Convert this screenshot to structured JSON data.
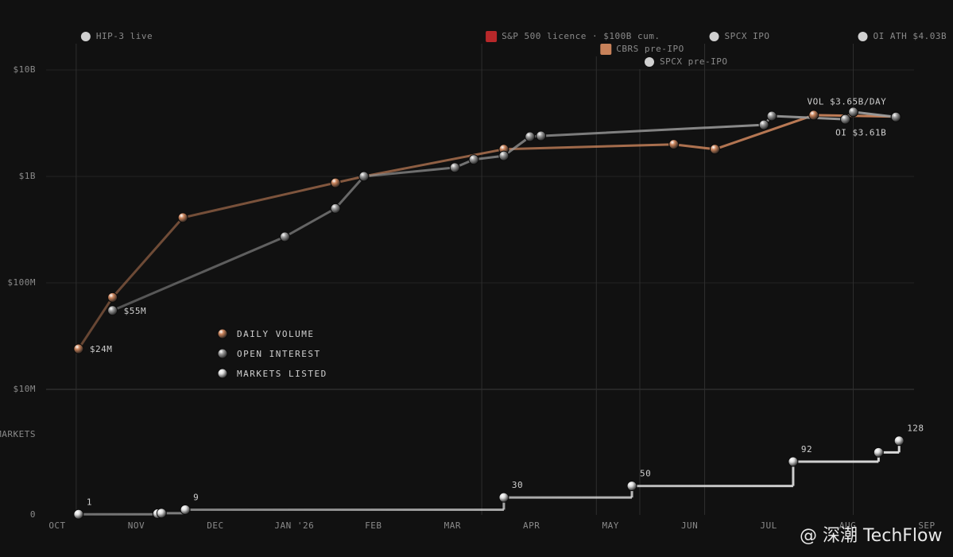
{
  "chart_data": [
    {
      "type": "line",
      "log_y": true,
      "grid": true,
      "ylim": [
        10000000,
        10000000000
      ],
      "yticks": [
        {
          "value": 10000000,
          "label": "$10M"
        },
        {
          "value": 100000000,
          "label": "$100M"
        },
        {
          "value": 1000000000,
          "label": "$1B"
        },
        {
          "value": 10000000000,
          "label": "$10B"
        }
      ],
      "xlim": [
        0,
        11
      ],
      "series": [
        {
          "name": "DAILY VOLUME",
          "color": "#c8825a",
          "x": [
            0.27,
            0.7,
            1.59,
            3.52,
            3.88,
            5.65,
            7.8,
            8.32,
            9.57,
            10.61
          ],
          "values": [
            24000000,
            73000000,
            410000000,
            870000000,
            1000000000,
            1800000000,
            2000000000,
            1800000000,
            3760000000,
            3650000000
          ],
          "value_labels": [
            "$24M",
            null,
            null,
            null,
            null,
            null,
            null,
            null,
            null,
            "VOL $3.65B/DAY"
          ]
        },
        {
          "name": "OPEN INTEREST",
          "color": "#9a9a9a",
          "x": [
            0.7,
            2.88,
            3.52,
            3.88,
            5.03,
            5.27,
            5.65,
            5.98,
            6.12,
            8.94,
            9.04,
            9.97,
            10.07,
            10.61
          ],
          "values": [
            55000000,
            271000000,
            500000000,
            1000000000,
            1210000000,
            1440000000,
            1560000000,
            2360000000,
            2400000000,
            3050000000,
            3690000000,
            3440000000,
            4030000000,
            3610000000
          ],
          "value_labels": [
            "$55M",
            null,
            null,
            null,
            null,
            null,
            null,
            null,
            null,
            null,
            null,
            null,
            null,
            "OI $3.61B"
          ]
        }
      ],
      "events": [
        {
          "x": 0.24,
          "label": "HIP-3 live"
        },
        {
          "x": 5.37,
          "label": "S&P 500 licence · $100B cum."
        },
        {
          "x": 6.82,
          "label": "CBRS pre-IPO"
        },
        {
          "x": 7.37,
          "label": "SPCX pre-IPO"
        },
        {
          "x": 8.19,
          "label": "SPCX IPO"
        },
        {
          "x": 10.07,
          "label": "OI ATH $4.03B"
        }
      ]
    },
    {
      "type": "step",
      "y_label": "MARKETS",
      "ylim": [
        0,
        140
      ],
      "yticks": [
        0
      ],
      "xlim": [
        0,
        11
      ],
      "xticks": [
        {
          "value": 0,
          "label": "OCT"
        },
        {
          "value": 1,
          "label": "NOV"
        },
        {
          "value": 2,
          "label": "DEC"
        },
        {
          "value": 3,
          "label": "JAN '26"
        },
        {
          "value": 4,
          "label": "FEB"
        },
        {
          "value": 5,
          "label": "MAR"
        },
        {
          "value": 6,
          "label": "APR"
        },
        {
          "value": 7,
          "label": "MAY"
        },
        {
          "value": 8,
          "label": "JUN"
        },
        {
          "value": 9,
          "label": "JUL"
        },
        {
          "value": 10,
          "label": "AUG"
        },
        {
          "value": 11,
          "label": "SEP"
        }
      ],
      "series": [
        {
          "name": "MARKETS LISTED",
          "color": "#dddddd",
          "x": [
            0.27,
            1.27,
            1.32,
            1.62,
            5.65,
            7.27,
            9.31,
            10.39,
            10.65
          ],
          "values": [
            1,
            2,
            3,
            9,
            30,
            50,
            92,
            108,
            128
          ],
          "value_labels": [
            "1",
            null,
            null,
            "9",
            "30",
            "50",
            "92",
            null,
            "128"
          ]
        }
      ]
    }
  ],
  "watermark": "@ 深潮 TechFlow"
}
